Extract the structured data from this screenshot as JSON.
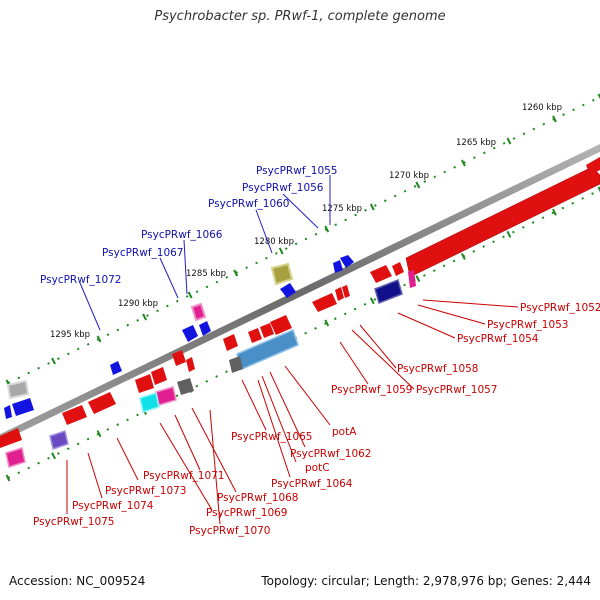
{
  "title": "Psychrobacter sp. PRwf-1, complete genome",
  "footer": {
    "accession": "Accession: NC_009524",
    "info": "Topology: circular; Length: 2,978,976 bp; Genes: 2,444"
  },
  "colors": {
    "forward_label": "#1010b0",
    "reverse_label": "#cc0000",
    "backbone": "#7a7a7a",
    "tick_dots": "#1e8a1e"
  },
  "scale_labels": [
    "1260 kbp",
    "1265 kbp",
    "1270 kbp",
    "1275 kbp",
    "1280 kbp",
    "1285 kbp",
    "1290 kbp",
    "1295 kbp"
  ],
  "forward_genes": [
    "PsycPRwf_1055",
    "PsycPRwf_1056",
    "PsycPRwf_1060",
    "PsycPRwf_1066",
    "PsycPRwf_1067",
    "PsycPRwf_1072"
  ],
  "reverse_genes": [
    "PsycPRwf_1052",
    "PsycPRwf_1053",
    "PsycPRwf_1054",
    "PsycPRwf_1058",
    "PsycPRwf_1057",
    "PsycPRwf_1059",
    "potA",
    "PsycPRwf_1062",
    "potC",
    "PsycPRwf_1064",
    "PsycPRwf_1065",
    "PsycPRwf_1071",
    "PsycPRwf_1073",
    "PsycPRwf_1068",
    "PsycPRwf_1074",
    "PsycPRwf_1069",
    "PsycPRwf_1075",
    "PsycPRwf_1070"
  ]
}
